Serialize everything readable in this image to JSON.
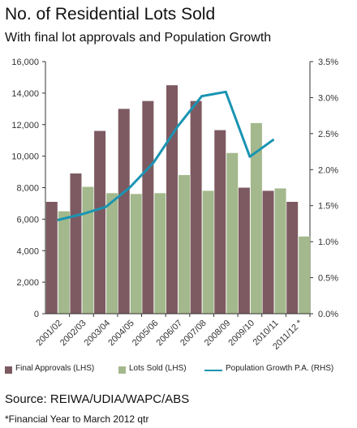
{
  "chart_data": {
    "type": "bar",
    "title": "No. of Residential Lots Sold",
    "subtitle": "With final lot approvals and Population Growth",
    "categories": [
      "2001/02",
      "2002/03",
      "2003/04",
      "2004/05",
      "2005/06",
      "2006/07",
      "2007/08",
      "2008/09",
      "2009/10",
      "2010/11",
      "2011/12 *"
    ],
    "series": [
      {
        "name": "Final Approvals (LHS)",
        "type": "bar",
        "axis": "left",
        "color": "#7d5a61",
        "values": [
          7100,
          8900,
          11600,
          13000,
          13500,
          14500,
          13500,
          11650,
          8000,
          7800,
          7100
        ]
      },
      {
        "name": "Lots Sold (LHS)",
        "type": "bar",
        "axis": "left",
        "color": "#a3b88c",
        "values": [
          6500,
          8050,
          7650,
          7600,
          7650,
          8800,
          7800,
          10200,
          12100,
          7950,
          4900
        ]
      },
      {
        "name": "Population Growth P.A. (RHS)",
        "type": "line",
        "axis": "right",
        "color": "#1a94b2",
        "values": [
          1.3,
          1.38,
          1.48,
          1.75,
          2.1,
          2.6,
          3.02,
          3.08,
          2.18,
          2.42,
          null
        ]
      }
    ],
    "left_axis": {
      "ylim": [
        0,
        16000
      ],
      "ticks": [
        "0",
        "2,000",
        "4,000",
        "6,000",
        "8,000",
        "10,000",
        "12,000",
        "14,000",
        "16,000"
      ]
    },
    "right_axis": {
      "ylim": [
        0,
        3.5
      ],
      "ticks": [
        "0.0%",
        "0.5%",
        "1.0%",
        "1.5%",
        "2.0%",
        "2.5%",
        "3.0%",
        "3.5%"
      ]
    },
    "grid": false,
    "legend_position": "bottom"
  },
  "source": "Source: REIWA/UDIA/WAPC/ABS",
  "footnote": "*Financial Year to March 2012 qtr"
}
